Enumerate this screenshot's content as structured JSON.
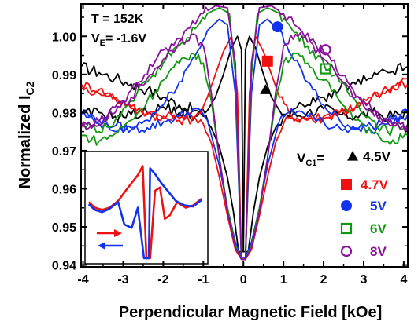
{
  "chart_data": {
    "type": "line",
    "xlabel": "Perpendicular Magnetic Field [kOe]",
    "ylabel": "Normalized I",
    "ylabel_sub": "C2",
    "xlim": [
      -4.05,
      4.1
    ],
    "ylim": [
      0.9395,
      1.0085
    ],
    "x_ticks": [
      "-4",
      "-3",
      "-2",
      "-1",
      "0",
      "1",
      "2",
      "3",
      "4"
    ],
    "x_tick_values": [
      -4,
      -3,
      -2,
      -1,
      0,
      1,
      2,
      3,
      4
    ],
    "y_ticks": [
      "0.94",
      "0.95",
      "0.96",
      "0.97",
      "0.98",
      "0.99",
      "1.00"
    ],
    "y_tick_values": [
      0.94,
      0.95,
      0.96,
      0.97,
      0.98,
      0.99,
      1.0
    ],
    "annotations": {
      "temperature": "T = 152K",
      "ve_prefix": "V",
      "ve_sub": "E",
      "ve_value": "= -1.6V",
      "vc_prefix": "V",
      "vc_sub": "C1",
      "vc_equals": "="
    },
    "legend": [
      {
        "marker": "triangle",
        "label": "4.5V",
        "color": "#000000"
      },
      {
        "marker": "square",
        "label": "4.7V",
        "color": "#ee1111"
      },
      {
        "marker": "circle",
        "label": "5V",
        "color": "#1133ee"
      },
      {
        "marker": "square-open",
        "label": "6V",
        "color": "#119911"
      },
      {
        "marker": "circle-open",
        "label": "8V",
        "color": "#881199"
      }
    ],
    "series": [
      {
        "name": "4.5V",
        "color": "#000000",
        "marker": {
          "shape": "triangle",
          "x": 0.55,
          "y": 0.986
        },
        "up": [
          [
            -4.05,
            0.992
          ],
          [
            -3.6,
            0.9905
          ],
          [
            -3.2,
            0.989
          ],
          [
            -2.8,
            0.9875
          ],
          [
            -2.4,
            0.986
          ],
          [
            -2.0,
            0.984
          ],
          [
            -1.6,
            0.982
          ],
          [
            -1.2,
            0.9805
          ],
          [
            -1.0,
            0.979
          ],
          [
            -0.8,
            0.976
          ],
          [
            -0.6,
            0.971
          ],
          [
            -0.4,
            0.963
          ],
          [
            -0.25,
            0.954
          ],
          [
            -0.12,
            0.9435
          ],
          [
            0.0,
            0.9435
          ],
          [
            0.05,
            0.9965
          ],
          [
            0.15,
            1.0
          ],
          [
            0.3,
            0.997
          ],
          [
            0.5,
            0.99
          ],
          [
            0.7,
            0.984
          ],
          [
            0.9,
            0.9805
          ],
          [
            1.2,
            0.979
          ],
          [
            1.6,
            0.98
          ],
          [
            2.0,
            0.981
          ],
          [
            2.4,
            0.9795
          ],
          [
            2.8,
            0.979
          ],
          [
            3.2,
            0.98
          ],
          [
            3.6,
            0.979
          ],
          [
            4.1,
            0.98
          ]
        ],
        "down": [
          [
            -4.05,
            0.9795
          ],
          [
            -3.6,
            0.98
          ],
          [
            -3.2,
            0.979
          ],
          [
            -2.8,
            0.9795
          ],
          [
            -2.4,
            0.98
          ],
          [
            -2.0,
            0.9815
          ],
          [
            -1.6,
            0.98
          ],
          [
            -1.2,
            0.979
          ],
          [
            -0.9,
            0.9805
          ],
          [
            -0.7,
            0.984
          ],
          [
            -0.5,
            0.99
          ],
          [
            -0.3,
            0.997
          ],
          [
            -0.15,
            1.0
          ],
          [
            -0.05,
            0.9965
          ],
          [
            0.0,
            0.9435
          ],
          [
            0.12,
            0.9435
          ],
          [
            0.25,
            0.954
          ],
          [
            0.4,
            0.963
          ],
          [
            0.6,
            0.971
          ],
          [
            0.8,
            0.976
          ],
          [
            1.0,
            0.979
          ],
          [
            1.2,
            0.9805
          ],
          [
            1.6,
            0.982
          ],
          [
            2.0,
            0.984
          ],
          [
            2.4,
            0.986
          ],
          [
            2.8,
            0.9875
          ],
          [
            3.2,
            0.989
          ],
          [
            3.6,
            0.9905
          ],
          [
            4.1,
            0.992
          ]
        ]
      },
      {
        "name": "4.7V",
        "color": "#ee1111",
        "marker": {
          "shape": "square",
          "x": 0.6,
          "y": 0.9935
        },
        "up": [
          [
            -4.05,
            0.9875
          ],
          [
            -3.6,
            0.986
          ],
          [
            -3.2,
            0.984
          ],
          [
            -2.8,
            0.9815
          ],
          [
            -2.4,
            0.98
          ],
          [
            -2.0,
            0.9785
          ],
          [
            -1.6,
            0.978
          ],
          [
            -1.2,
            0.9785
          ],
          [
            -1.0,
            0.977
          ],
          [
            -0.8,
            0.972
          ],
          [
            -0.6,
            0.963
          ],
          [
            -0.4,
            0.953
          ],
          [
            -0.2,
            0.944
          ],
          [
            -0.05,
            0.9415
          ],
          [
            0.05,
            0.9415
          ],
          [
            0.15,
            0.985
          ],
          [
            0.3,
            1.0
          ],
          [
            0.5,
            0.996
          ],
          [
            0.7,
            0.99
          ],
          [
            0.9,
            0.984
          ],
          [
            1.2,
            0.979
          ],
          [
            1.6,
            0.9785
          ],
          [
            2.0,
            0.979
          ],
          [
            2.4,
            0.98
          ],
          [
            2.8,
            0.9815
          ],
          [
            3.2,
            0.984
          ],
          [
            3.6,
            0.986
          ],
          [
            4.1,
            0.989
          ]
        ],
        "down": [
          [
            -4.05,
            0.9865
          ],
          [
            -3.6,
            0.985
          ],
          [
            -3.2,
            0.9835
          ],
          [
            -2.8,
            0.981
          ],
          [
            -2.4,
            0.9795
          ],
          [
            -2.0,
            0.979
          ],
          [
            -1.6,
            0.9785
          ],
          [
            -1.2,
            0.979
          ],
          [
            -0.9,
            0.984
          ],
          [
            -0.7,
            0.99
          ],
          [
            -0.5,
            0.996
          ],
          [
            -0.3,
            1.0
          ],
          [
            -0.15,
            0.985
          ],
          [
            -0.05,
            0.9415
          ],
          [
            0.05,
            0.9415
          ],
          [
            0.2,
            0.944
          ],
          [
            0.4,
            0.953
          ],
          [
            0.6,
            0.963
          ],
          [
            0.8,
            0.972
          ],
          [
            1.0,
            0.977
          ],
          [
            1.2,
            0.9785
          ],
          [
            1.6,
            0.978
          ],
          [
            2.0,
            0.9785
          ],
          [
            2.4,
            0.98
          ],
          [
            2.8,
            0.9815
          ],
          [
            3.2,
            0.984
          ],
          [
            3.6,
            0.986
          ],
          [
            4.1,
            0.9875
          ]
        ]
      },
      {
        "name": "5V",
        "color": "#1133ee",
        "marker": {
          "shape": "circle",
          "x": 0.85,
          "y": 1.0025
        },
        "up": [
          [
            -4.05,
            0.9805
          ],
          [
            -3.6,
            0.978
          ],
          [
            -3.2,
            0.9765
          ],
          [
            -2.8,
            0.9755
          ],
          [
            -2.4,
            0.976
          ],
          [
            -2.0,
            0.9775
          ],
          [
            -1.6,
            0.979
          ],
          [
            -1.2,
            0.981
          ],
          [
            -0.9,
            0.978
          ],
          [
            -0.6,
            0.966
          ],
          [
            -0.4,
            0.955
          ],
          [
            -0.2,
            0.946
          ],
          [
            -0.05,
            0.942
          ],
          [
            0.05,
            0.942
          ],
          [
            0.2,
            0.985
          ],
          [
            0.4,
            1.003
          ],
          [
            0.6,
            1.0045
          ],
          [
            0.9,
            1.0015
          ],
          [
            1.2,
            0.995
          ],
          [
            1.6,
            0.988
          ],
          [
            2.0,
            0.982
          ],
          [
            2.4,
            0.978
          ],
          [
            2.8,
            0.976
          ],
          [
            3.2,
            0.975
          ],
          [
            3.6,
            0.977
          ],
          [
            4.1,
            0.9795
          ]
        ],
        "down": [
          [
            -4.05,
            0.9795
          ],
          [
            -3.6,
            0.977
          ],
          [
            -3.2,
            0.975
          ],
          [
            -2.8,
            0.976
          ],
          [
            -2.4,
            0.978
          ],
          [
            -2.0,
            0.982
          ],
          [
            -1.6,
            0.988
          ],
          [
            -1.2,
            0.995
          ],
          [
            -0.9,
            1.0015
          ],
          [
            -0.6,
            1.0045
          ],
          [
            -0.4,
            1.003
          ],
          [
            -0.2,
            0.985
          ],
          [
            -0.05,
            0.942
          ],
          [
            0.05,
            0.942
          ],
          [
            0.2,
            0.946
          ],
          [
            0.4,
            0.955
          ],
          [
            0.6,
            0.966
          ],
          [
            0.9,
            0.978
          ],
          [
            1.2,
            0.981
          ],
          [
            1.6,
            0.979
          ],
          [
            2.0,
            0.9775
          ],
          [
            2.4,
            0.976
          ],
          [
            2.8,
            0.9755
          ],
          [
            3.2,
            0.9765
          ],
          [
            3.6,
            0.978
          ],
          [
            4.1,
            0.9805
          ]
        ]
      },
      {
        "name": "6V",
        "color": "#119911",
        "marker": {
          "shape": "square-open",
          "x": 2.05,
          "y": 0.9915
        },
        "up": [
          [
            -4.05,
            0.974
          ],
          [
            -3.6,
            0.9725
          ],
          [
            -3.2,
            0.9745
          ],
          [
            -2.8,
            0.978
          ],
          [
            -2.4,
            0.983
          ],
          [
            -2.0,
            0.9885
          ],
          [
            -1.6,
            0.993
          ],
          [
            -1.3,
            0.9955
          ],
          [
            -1.0,
            0.993
          ],
          [
            -0.8,
            0.983
          ],
          [
            -0.6,
            0.968
          ],
          [
            -0.4,
            0.955
          ],
          [
            -0.2,
            0.945
          ],
          [
            -0.05,
            0.9415
          ],
          [
            0.05,
            0.9415
          ],
          [
            0.2,
            0.99
          ],
          [
            0.35,
            1.006
          ],
          [
            0.6,
            1.0075
          ],
          [
            0.9,
            1.006
          ],
          [
            1.2,
            1.002
          ],
          [
            1.6,
            0.9975
          ],
          [
            2.0,
            0.993
          ],
          [
            2.4,
            0.988
          ],
          [
            2.8,
            0.983
          ],
          [
            3.2,
            0.978
          ],
          [
            3.6,
            0.975
          ],
          [
            4.1,
            0.977
          ]
        ],
        "down": [
          [
            -4.05,
            0.977
          ],
          [
            -3.6,
            0.975
          ],
          [
            -3.2,
            0.978
          ],
          [
            -2.8,
            0.983
          ],
          [
            -2.4,
            0.988
          ],
          [
            -2.0,
            0.993
          ],
          [
            -1.6,
            0.9975
          ],
          [
            -1.2,
            1.002
          ],
          [
            -0.9,
            1.006
          ],
          [
            -0.6,
            1.0075
          ],
          [
            -0.35,
            1.006
          ],
          [
            -0.2,
            0.99
          ],
          [
            -0.05,
            0.9415
          ],
          [
            0.05,
            0.9415
          ],
          [
            0.2,
            0.945
          ],
          [
            0.4,
            0.955
          ],
          [
            0.6,
            0.968
          ],
          [
            0.8,
            0.983
          ],
          [
            1.0,
            0.993
          ],
          [
            1.3,
            0.9955
          ],
          [
            1.6,
            0.993
          ],
          [
            2.0,
            0.9885
          ],
          [
            2.4,
            0.983
          ],
          [
            2.8,
            0.978
          ],
          [
            3.2,
            0.9745
          ],
          [
            3.6,
            0.9725
          ],
          [
            4.1,
            0.974
          ]
        ]
      },
      {
        "name": "8V",
        "color": "#881199",
        "marker": {
          "shape": "circle-open",
          "x": 2.05,
          "y": 0.9965
        },
        "up": [
          [
            -4.05,
            0.9765
          ],
          [
            -3.6,
            0.9775
          ],
          [
            -3.2,
            0.98
          ],
          [
            -2.8,
            0.984
          ],
          [
            -2.4,
            0.989
          ],
          [
            -2.0,
            0.994
          ],
          [
            -1.6,
            0.9985
          ],
          [
            -1.3,
            1.0005
          ],
          [
            -1.0,
            0.9975
          ],
          [
            -0.8,
            0.985
          ],
          [
            -0.6,
            0.968
          ],
          [
            -0.4,
            0.954
          ],
          [
            -0.2,
            0.9445
          ],
          [
            -0.05,
            0.9415
          ],
          [
            0.05,
            0.9415
          ],
          [
            0.2,
            0.993
          ],
          [
            0.4,
            1.0075
          ],
          [
            0.7,
            1.008
          ],
          [
            1.0,
            1.006
          ],
          [
            1.4,
            1.002
          ],
          [
            1.8,
            0.998
          ],
          [
            2.2,
            0.9935
          ],
          [
            2.6,
            0.988
          ],
          [
            3.0,
            0.983
          ],
          [
            3.4,
            0.979
          ],
          [
            3.8,
            0.9765
          ],
          [
            4.1,
            0.976
          ]
        ],
        "down": [
          [
            -4.05,
            0.976
          ],
          [
            -3.8,
            0.9765
          ],
          [
            -3.4,
            0.979
          ],
          [
            -3.0,
            0.983
          ],
          [
            -2.6,
            0.988
          ],
          [
            -2.2,
            0.9935
          ],
          [
            -1.8,
            0.998
          ],
          [
            -1.4,
            1.002
          ],
          [
            -1.0,
            1.006
          ],
          [
            -0.7,
            1.008
          ],
          [
            -0.4,
            1.0075
          ],
          [
            -0.2,
            0.993
          ],
          [
            -0.05,
            0.9415
          ],
          [
            0.05,
            0.9415
          ],
          [
            0.2,
            0.9445
          ],
          [
            0.4,
            0.954
          ],
          [
            0.6,
            0.968
          ],
          [
            0.8,
            0.985
          ],
          [
            1.0,
            0.9975
          ],
          [
            1.3,
            1.0005
          ],
          [
            1.6,
            0.9985
          ],
          [
            2.0,
            0.994
          ],
          [
            2.4,
            0.989
          ],
          [
            2.8,
            0.984
          ],
          [
            3.2,
            0.98
          ],
          [
            3.6,
            0.9775
          ],
          [
            4.1,
            0.9765
          ]
        ]
      }
    ],
    "inset": {
      "series": [
        {
          "name": "red",
          "color": "#ee1111"
        },
        {
          "name": "blue",
          "color": "#1133ee"
        }
      ],
      "arrows": [
        {
          "direction": "right",
          "color": "#ee1111"
        },
        {
          "direction": "left",
          "color": "#1133ee"
        }
      ]
    }
  }
}
